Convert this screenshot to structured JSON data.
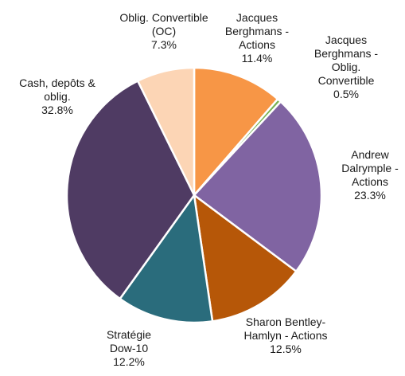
{
  "chart_data": {
    "type": "pie",
    "start_angle_deg": 0,
    "direction": "clockwise",
    "slices": [
      {
        "label": "Jacques Berghmans - Actions",
        "label_lines": [
          "Jacques",
          "Berghmans -",
          "Actions"
        ],
        "value": 11.4,
        "value_label": "11.4%",
        "color": "#F79646"
      },
      {
        "label": "Jacques Berghmans - Oblig. Convertible",
        "label_lines": [
          "Jacques",
          "Berghmans -",
          "Oblig.",
          "Convertible"
        ],
        "value": 0.5,
        "value_label": "0.5%",
        "color": "#77B255"
      },
      {
        "label": "Andrew Dalrymple - Actions",
        "label_lines": [
          "Andrew",
          "Dalrymple -",
          "Actions"
        ],
        "value": 23.3,
        "value_label": "23.3%",
        "color": "#8064A2"
      },
      {
        "label": "Sharon Bentley-Hamlyn - Actions",
        "label_lines": [
          "Sharon Bentley-",
          "Hamlyn - Actions"
        ],
        "value": 12.5,
        "value_label": "12.5%",
        "color": "#B65708"
      },
      {
        "label": "Stratégie Dow-10",
        "label_lines": [
          "Stratégie",
          "Dow-10"
        ],
        "value": 12.2,
        "value_label": "12.2%",
        "color": "#2A6C7C"
      },
      {
        "label": "Cash, depôts & oblig.",
        "label_lines": [
          "Cash, depôts &",
          "oblig."
        ],
        "value": 32.8,
        "value_label": "32.8%",
        "color": "#4F3B63"
      },
      {
        "label": "Oblig. Convertible (OC)",
        "label_lines": [
          "Oblig. Convertible",
          "(OC)"
        ],
        "value": 7.3,
        "value_label": "7.3%",
        "color": "#FCD5B5"
      }
    ]
  }
}
